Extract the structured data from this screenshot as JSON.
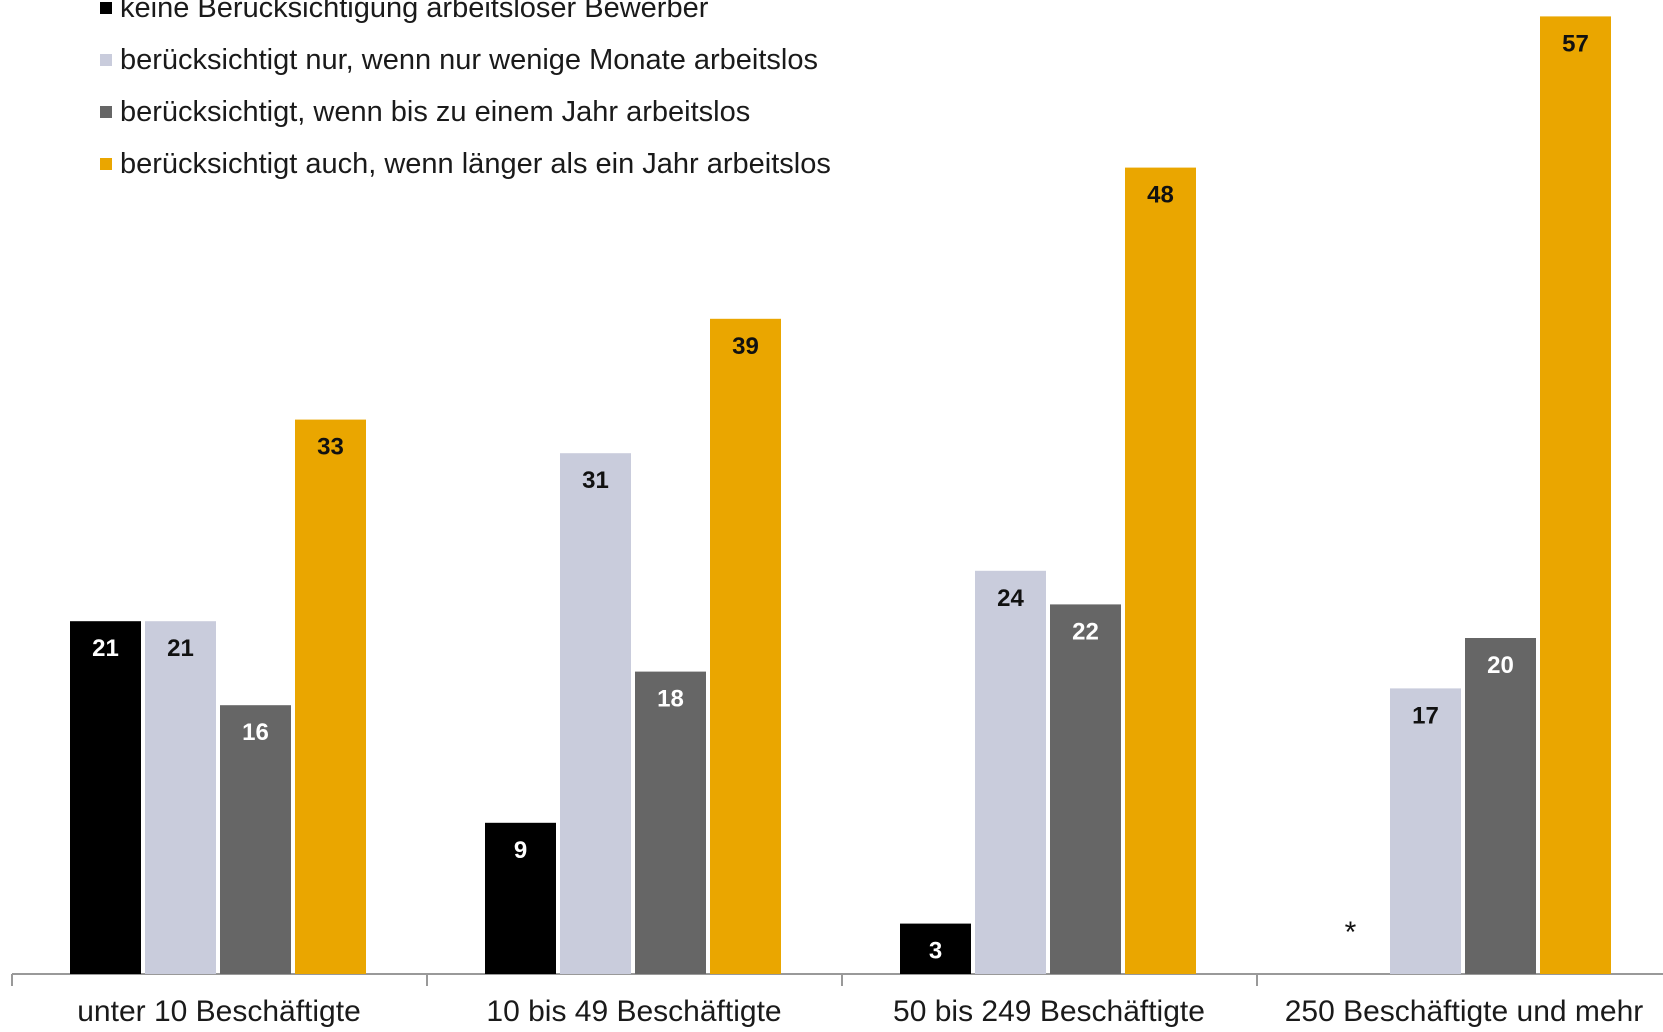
{
  "chart_data": {
    "type": "bar",
    "categories": [
      "unter 10 Beschäftigte",
      "10 bis 49 Beschäftigte",
      "50 bis 249 Beschäftigte",
      "250 Beschäftigte und mehr"
    ],
    "series": [
      {
        "name": "keine Berücksichtigung arbeitsloser Bewerber",
        "color": "#000000",
        "values": [
          21,
          9,
          3,
          null
        ],
        "value_labels": [
          "21",
          "9",
          "3",
          "*"
        ]
      },
      {
        "name": "berücksichtigt nur, wenn nur wenige Monate arbeitslos",
        "color": "#c9ccdc",
        "values": [
          21,
          31,
          24,
          17
        ],
        "value_labels": [
          "21",
          "31",
          "24",
          "17"
        ]
      },
      {
        "name": "berücksichtigt, wenn bis zu einem Jahr arbeitslos",
        "color": "#666666",
        "values": [
          16,
          18,
          22,
          20
        ],
        "value_labels": [
          "16",
          "18",
          "22",
          "20"
        ]
      },
      {
        "name": "berücksichtigt auch, wenn länger als ein Jahr arbeitslos",
        "color": "#eaa600",
        "values": [
          33,
          39,
          48,
          57
        ],
        "value_labels": [
          "33",
          "39",
          "48",
          "57"
        ]
      }
    ],
    "ylim": [
      0,
      60
    ],
    "legend_position": "top-left",
    "grid": false
  }
}
